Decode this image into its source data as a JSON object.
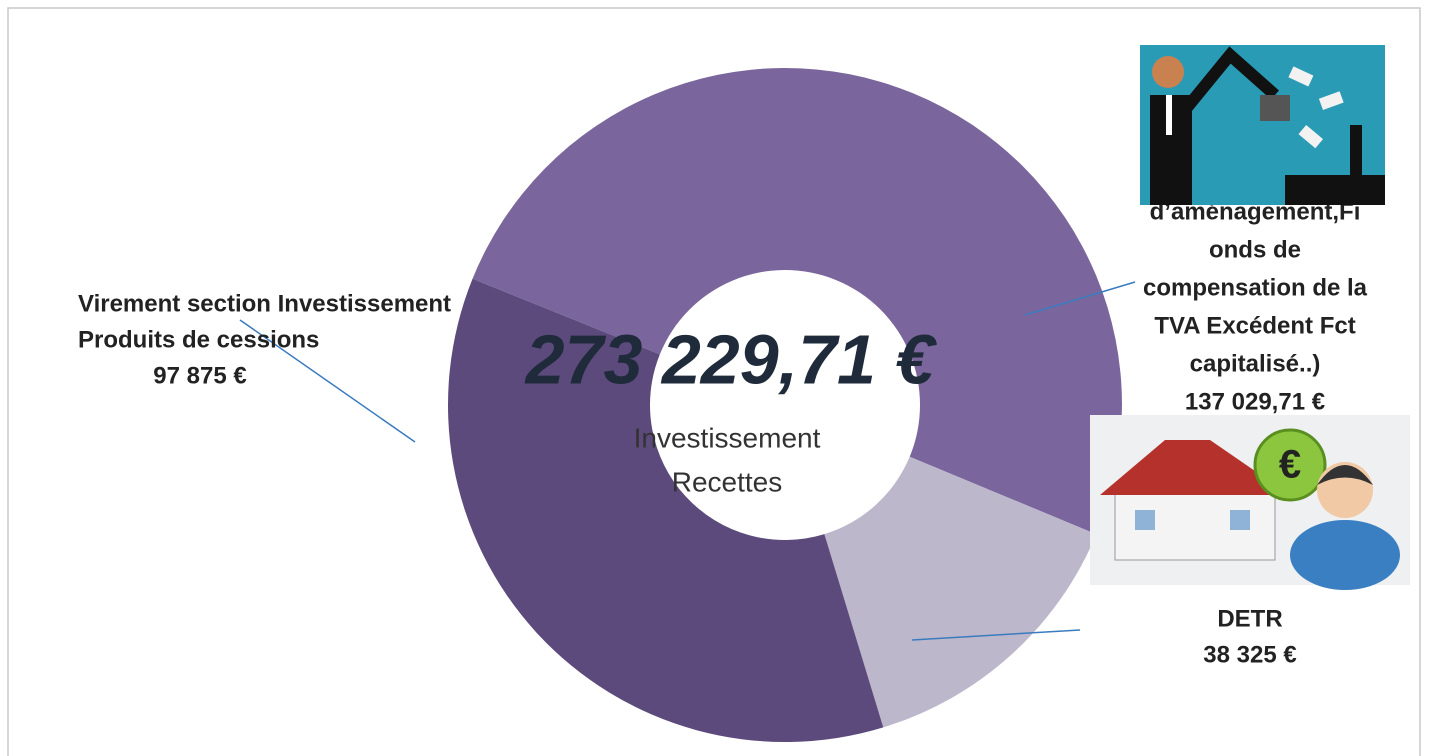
{
  "chart_data": {
    "type": "donut",
    "center_title": "273 229,71 €",
    "center_subtitle": [
      "Investissement",
      "Recettes"
    ],
    "categories": [
      [
        "d’aménagement,Fi",
        "onds de",
        "compensation de la",
        "TVA    Excédent Fct",
        "capitalisé..)"
      ],
      [
        "DETR"
      ],
      [
        "Virement section Investissement",
        "Produits de cessions"
      ]
    ],
    "values": [
      137029.71,
      38325,
      97875
    ],
    "value_labels": [
      "137 029,71 €",
      "38 325 €",
      "97 875  €"
    ],
    "colors": [
      "#7a669c",
      "#bcb7ca",
      "#5d4a7c"
    ]
  }
}
